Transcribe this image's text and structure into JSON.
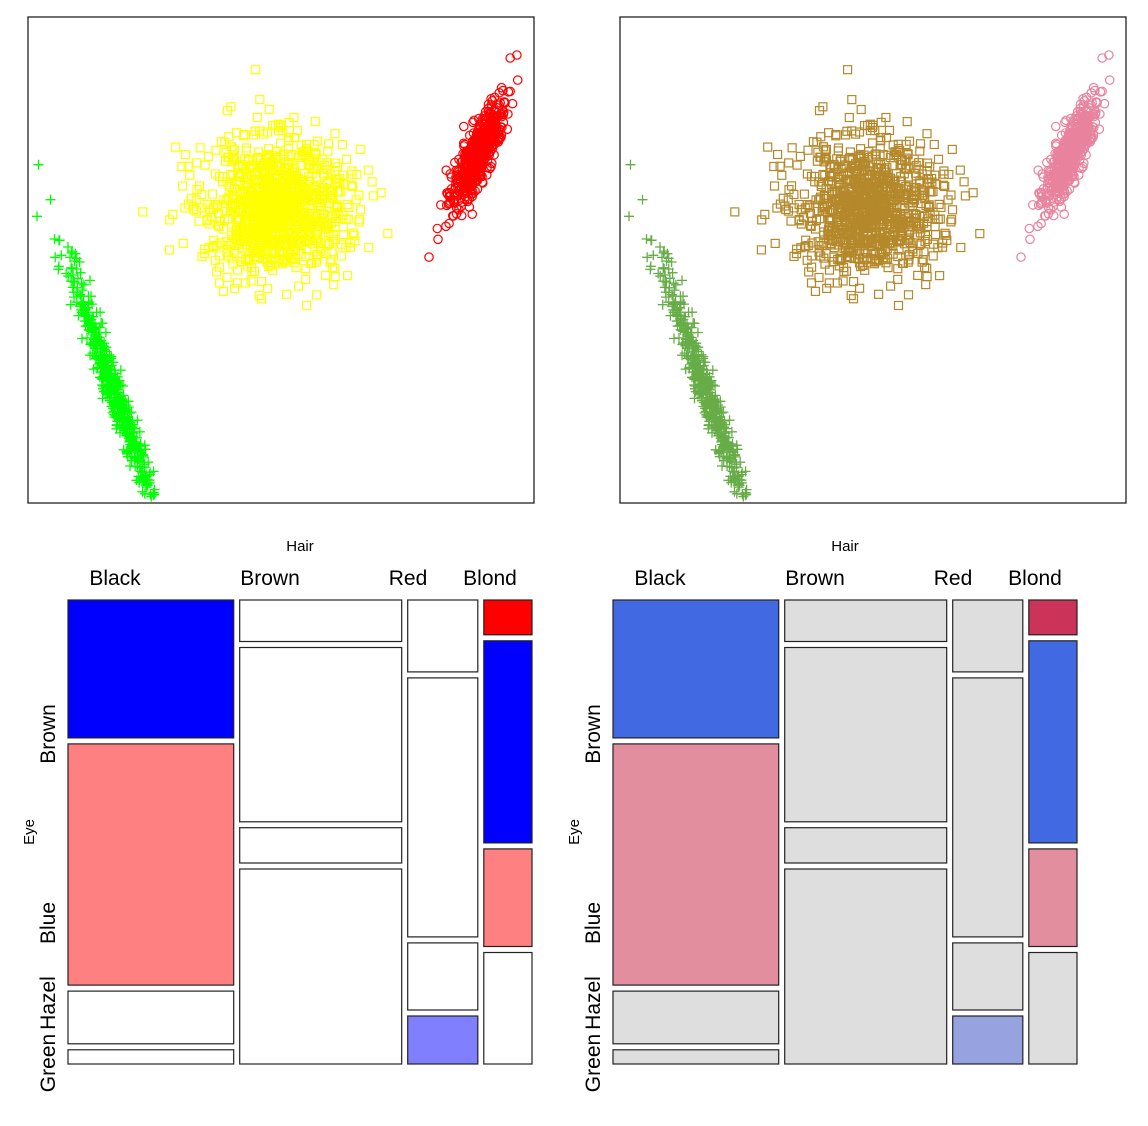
{
  "chart_data": [
    {
      "type": "scatter",
      "panel": "top-left",
      "title": "",
      "xlabel": "",
      "ylabel": "",
      "axes_shown": false,
      "series": [
        {
          "name": "",
          "marker": "circle",
          "color": "#FF0000",
          "n": 500,
          "center": [
            0.89,
            0.28
          ],
          "sd": [
            0.028,
            0.06
          ],
          "correlation": -0.85
        },
        {
          "name": "",
          "marker": "square",
          "color": "#FFFF00",
          "n": 1000,
          "center": [
            0.49,
            0.39
          ],
          "sd": [
            0.07,
            0.07
          ],
          "correlation": 0.0
        },
        {
          "name": "",
          "marker": "plus",
          "color": "#00FF00",
          "n": 500,
          "center": [
            0.17,
            0.77
          ],
          "sd": [
            0.045,
            0.13
          ],
          "correlation": 0.97
        }
      ]
    },
    {
      "type": "scatter",
      "panel": "top-right",
      "title": "",
      "xlabel": "",
      "ylabel": "",
      "axes_shown": false,
      "series": [
        {
          "name": "",
          "marker": "circle",
          "color": "#E8839E",
          "n": 500,
          "center": [
            0.89,
            0.28
          ],
          "sd": [
            0.028,
            0.06
          ],
          "correlation": -0.85
        },
        {
          "name": "",
          "marker": "square",
          "color": "#B5892B",
          "n": 1000,
          "center": [
            0.49,
            0.39
          ],
          "sd": [
            0.07,
            0.07
          ],
          "correlation": 0.0
        },
        {
          "name": "",
          "marker": "plus",
          "color": "#66AD47",
          "n": 500,
          "center": [
            0.17,
            0.77
          ],
          "sd": [
            0.045,
            0.13
          ],
          "correlation": 0.97
        }
      ]
    },
    {
      "type": "mosaic",
      "panel": "bottom-left",
      "xlabel": "Hair",
      "ylabel": "Eye",
      "columns": [
        "Black",
        "Brown",
        "Red",
        "Blond"
      ],
      "rows": [
        "Brown",
        "Blue",
        "Hazel",
        "Green"
      ],
      "counts": [
        [
          68,
          20,
          15,
          5
        ],
        [
          119,
          84,
          54,
          29
        ],
        [
          26,
          17,
          14,
          14
        ],
        [
          7,
          94,
          10,
          16
        ]
      ],
      "cell_colors": [
        [
          "#0000FF",
          "#FF8080",
          "#FFFFFF",
          "#FFFFFF"
        ],
        [
          "#FFFFFF",
          "#FFFFFF",
          "#FFFFFF",
          "#FFFFFF"
        ],
        [
          "#FFFFFF",
          "#FFFFFF",
          "#FFFFFF",
          "#8080FF"
        ],
        [
          "#FF0000",
          "#0000FF",
          "#FF8080",
          "#FFFFFF"
        ]
      ]
    },
    {
      "type": "mosaic",
      "panel": "bottom-right",
      "xlabel": "Hair",
      "ylabel": "Eye",
      "columns": [
        "Black",
        "Brown",
        "Red",
        "Blond"
      ],
      "rows": [
        "Brown",
        "Blue",
        "Hazel",
        "Green"
      ],
      "counts": [
        [
          68,
          20,
          15,
          5
        ],
        [
          119,
          84,
          54,
          29
        ],
        [
          26,
          17,
          14,
          14
        ],
        [
          7,
          94,
          10,
          16
        ]
      ],
      "cell_colors": [
        [
          "#4169E1",
          "#E28E9E",
          "#DEDEDE",
          "#DEDEDE"
        ],
        [
          "#DEDEDE",
          "#DEDEDE",
          "#DEDEDE",
          "#DEDEDE"
        ],
        [
          "#DEDEDE",
          "#DEDEDE",
          "#DEDEDE",
          "#96A3E0"
        ],
        [
          "#CC3359",
          "#4169E1",
          "#E28E9E",
          "#DEDEDE"
        ]
      ]
    }
  ]
}
